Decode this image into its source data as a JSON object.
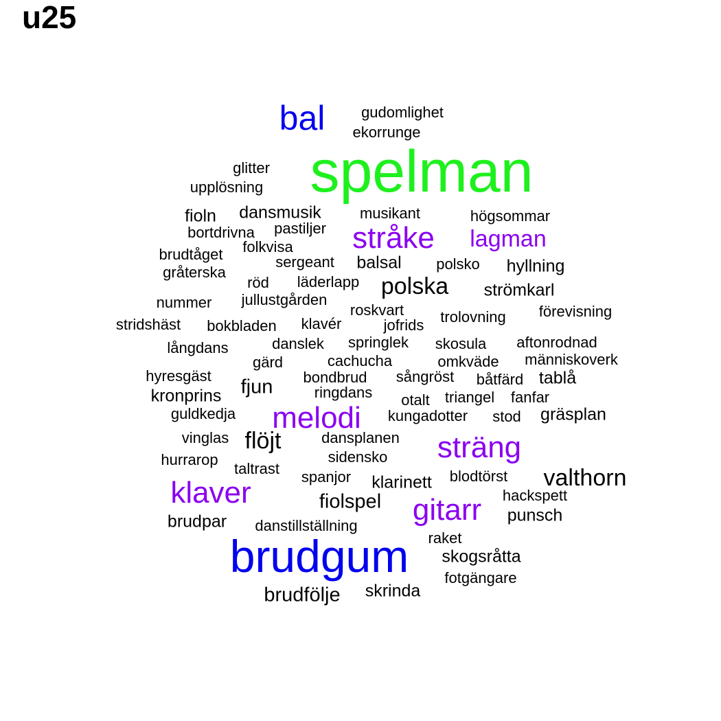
{
  "title": "u25",
  "colors": {
    "black": "#000000",
    "purple": "#8b00f0",
    "blue": "#0000ee",
    "green": "#1ef01e"
  },
  "words": [
    {
      "text": "spelman",
      "color": "green"
    },
    {
      "text": "brudgum",
      "color": "blue"
    },
    {
      "text": "bal",
      "color": "blue"
    },
    {
      "text": "stråke",
      "color": "purple"
    },
    {
      "text": "lagman",
      "color": "purple"
    },
    {
      "text": "melodi",
      "color": "purple"
    },
    {
      "text": "sträng",
      "color": "purple"
    },
    {
      "text": "klaver",
      "color": "purple"
    },
    {
      "text": "gitarr",
      "color": "purple"
    },
    {
      "text": "gudomlighet",
      "color": "black"
    },
    {
      "text": "ekorrunge",
      "color": "black"
    },
    {
      "text": "glitter",
      "color": "black"
    },
    {
      "text": "upplösning",
      "color": "black"
    },
    {
      "text": "fioln",
      "color": "black"
    },
    {
      "text": "dansmusik",
      "color": "black"
    },
    {
      "text": "musikant",
      "color": "black"
    },
    {
      "text": "högsommar",
      "color": "black"
    },
    {
      "text": "bortdrivna",
      "color": "black"
    },
    {
      "text": "pastiljer",
      "color": "black"
    },
    {
      "text": "brudtåget",
      "color": "black"
    },
    {
      "text": "folkvisa",
      "color": "black"
    },
    {
      "text": "sergeant",
      "color": "black"
    },
    {
      "text": "balsal",
      "color": "black"
    },
    {
      "text": "polsko",
      "color": "black"
    },
    {
      "text": "hyllning",
      "color": "black"
    },
    {
      "text": "gråterska",
      "color": "black"
    },
    {
      "text": "röd",
      "color": "black"
    },
    {
      "text": "läderlapp",
      "color": "black"
    },
    {
      "text": "polska",
      "color": "black"
    },
    {
      "text": "strömkarl",
      "color": "black"
    },
    {
      "text": "nummer",
      "color": "black"
    },
    {
      "text": "jullustgården",
      "color": "black"
    },
    {
      "text": "roskvart",
      "color": "black"
    },
    {
      "text": "förevisning",
      "color": "black"
    },
    {
      "text": "stridshäst",
      "color": "black"
    },
    {
      "text": "bokbladen",
      "color": "black"
    },
    {
      "text": "klavér",
      "color": "black"
    },
    {
      "text": "jofrids",
      "color": "black"
    },
    {
      "text": "trolovning",
      "color": "black"
    },
    {
      "text": "långdans",
      "color": "black"
    },
    {
      "text": "danslek",
      "color": "black"
    },
    {
      "text": "springlek",
      "color": "black"
    },
    {
      "text": "skosula",
      "color": "black"
    },
    {
      "text": "aftonrodnad",
      "color": "black"
    },
    {
      "text": "gärd",
      "color": "black"
    },
    {
      "text": "cachucha",
      "color": "black"
    },
    {
      "text": "omkväde",
      "color": "black"
    },
    {
      "text": "människoverk",
      "color": "black"
    },
    {
      "text": "hyresgäst",
      "color": "black"
    },
    {
      "text": "bondbrud",
      "color": "black"
    },
    {
      "text": "sångröst",
      "color": "black"
    },
    {
      "text": "båtfärd",
      "color": "black"
    },
    {
      "text": "tablå",
      "color": "black"
    },
    {
      "text": "fjun",
      "color": "black"
    },
    {
      "text": "kronprins",
      "color": "black"
    },
    {
      "text": "ringdans",
      "color": "black"
    },
    {
      "text": "otalt",
      "color": "black"
    },
    {
      "text": "triangel",
      "color": "black"
    },
    {
      "text": "fanfar",
      "color": "black"
    },
    {
      "text": "guldkedja",
      "color": "black"
    },
    {
      "text": "kungadotter",
      "color": "black"
    },
    {
      "text": "stod",
      "color": "black"
    },
    {
      "text": "gräsplan",
      "color": "black"
    },
    {
      "text": "vinglas",
      "color": "black"
    },
    {
      "text": "flöjt",
      "color": "black"
    },
    {
      "text": "dansplanen",
      "color": "black"
    },
    {
      "text": "hurrarop",
      "color": "black"
    },
    {
      "text": "sidensko",
      "color": "black"
    },
    {
      "text": "taltrast",
      "color": "black"
    },
    {
      "text": "spanjor",
      "color": "black"
    },
    {
      "text": "klarinett",
      "color": "black"
    },
    {
      "text": "blodtörst",
      "color": "black"
    },
    {
      "text": "valthorn",
      "color": "black"
    },
    {
      "text": "hackspett",
      "color": "black"
    },
    {
      "text": "fiolspel",
      "color": "black"
    },
    {
      "text": "punsch",
      "color": "black"
    },
    {
      "text": "brudpar",
      "color": "black"
    },
    {
      "text": "danstillställning",
      "color": "black"
    },
    {
      "text": "raket",
      "color": "black"
    },
    {
      "text": "skogsråtta",
      "color": "black"
    },
    {
      "text": "fotgängare",
      "color": "black"
    },
    {
      "text": "brudfölje",
      "color": "black"
    },
    {
      "text": "skrinda",
      "color": "black"
    }
  ]
}
